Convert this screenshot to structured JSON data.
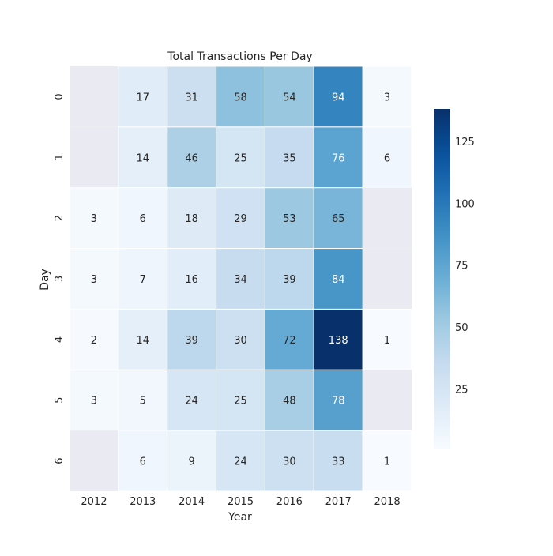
{
  "chart_data": {
    "type": "heatmap",
    "title": "Total Transactions Per Day",
    "xlabel": "Year",
    "ylabel": "Day",
    "x_categories": [
      "2012",
      "2013",
      "2014",
      "2015",
      "2016",
      "2017",
      "2018"
    ],
    "y_categories": [
      "0",
      "1",
      "2",
      "3",
      "4",
      "5",
      "6"
    ],
    "values": [
      [
        null,
        17,
        31,
        58,
        54,
        94,
        3
      ],
      [
        null,
        14,
        46,
        25,
        35,
        76,
        6
      ],
      [
        3,
        6,
        18,
        29,
        53,
        65,
        null
      ],
      [
        3,
        7,
        16,
        34,
        39,
        84,
        null
      ],
      [
        2,
        14,
        39,
        30,
        72,
        138,
        1
      ],
      [
        3,
        5,
        24,
        25,
        48,
        78,
        null
      ],
      [
        null,
        6,
        9,
        24,
        30,
        33,
        1
      ]
    ],
    "colormap": "Blues",
    "color_range": [
      1,
      138
    ],
    "colorbar_ticks": [
      25,
      50,
      75,
      100,
      125
    ],
    "missing_color": "#eaeaf2",
    "annotated": true
  }
}
